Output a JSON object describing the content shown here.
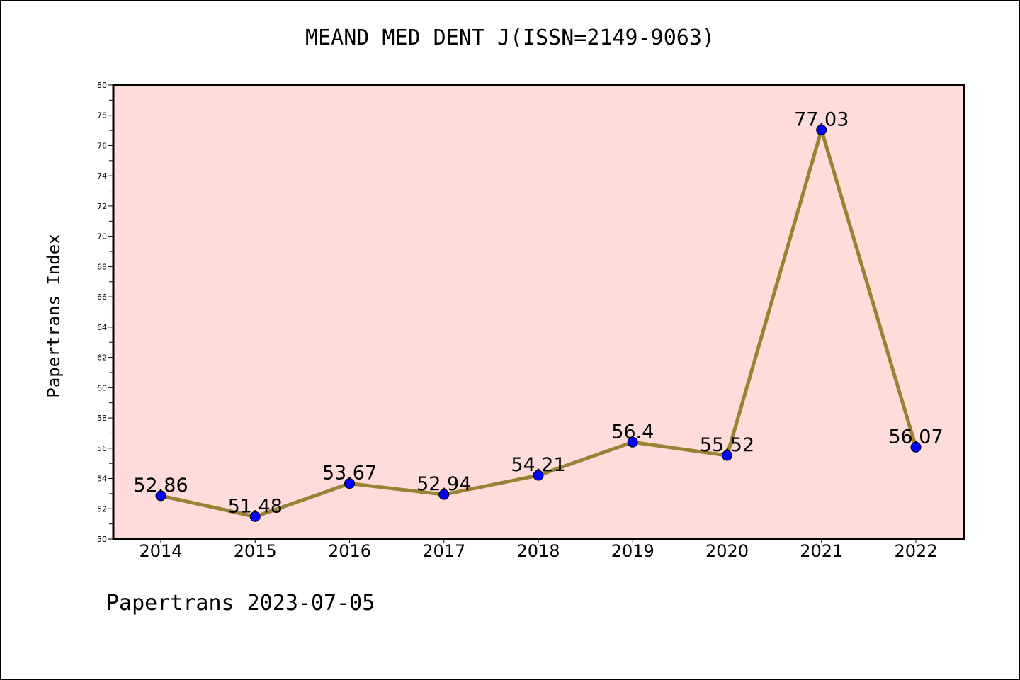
{
  "title": "MEAND MED DENT J(ISSN=2149-9063)",
  "footer": "Papertrans 2023-07-05",
  "chart_data": {
    "type": "line",
    "title": "MEAND MED DENT J(ISSN=2149-9063)",
    "xlabel": "",
    "ylabel": "Papertrans Index",
    "categories": [
      "2014",
      "2015",
      "2016",
      "2017",
      "2018",
      "2019",
      "2020",
      "2021",
      "2022"
    ],
    "series": [
      {
        "values": [
          52.86,
          51.48,
          53.67,
          52.94,
          54.21,
          56.4,
          55.52,
          77.03,
          56.07
        ],
        "labels": [
          "52.86",
          "51.48",
          "53.67",
          "52.94",
          "54.21",
          "56.4",
          "55.52",
          "77.03",
          "56.07"
        ]
      }
    ],
    "ylim": [
      50,
      80
    ],
    "yticks": [
      50,
      52,
      54,
      56,
      58,
      60,
      62,
      64,
      66,
      68,
      70,
      72,
      74,
      76,
      78,
      80
    ],
    "grid": false,
    "colors": {
      "plot_background": "#FDDCDA",
      "line": "#9A8235",
      "marker": "#0000FF"
    }
  }
}
